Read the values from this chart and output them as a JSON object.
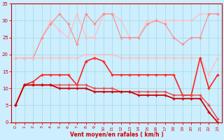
{
  "x": [
    0,
    1,
    2,
    3,
    4,
    5,
    6,
    7,
    8,
    9,
    10,
    11,
    12,
    13,
    14,
    15,
    16,
    17,
    18,
    19,
    20,
    21,
    22,
    23
  ],
  "line1": [
    19,
    19,
    19,
    25,
    30,
    27,
    25,
    32,
    25,
    25,
    32,
    32,
    30,
    25,
    25,
    30,
    30,
    30,
    30,
    30,
    30,
    32,
    32,
    32
  ],
  "line2": [
    19,
    19,
    19,
    25,
    29,
    32,
    29,
    23,
    32,
    29,
    32,
    32,
    25,
    25,
    25,
    29,
    30,
    29,
    25,
    23,
    25,
    25,
    32,
    32
  ],
  "line3": [
    19,
    19,
    19,
    19,
    19,
    19,
    19,
    19,
    20,
    20,
    20,
    20,
    19,
    19,
    19,
    19,
    19,
    19,
    19,
    19,
    19,
    19,
    14,
    19
  ],
  "line4": [
    5,
    11,
    12,
    14,
    14,
    14,
    14,
    11,
    18,
    19,
    18,
    14,
    14,
    14,
    14,
    14,
    14,
    14,
    14,
    8,
    8,
    19,
    10,
    14
  ],
  "line5": [
    5,
    11,
    11,
    11,
    11,
    11,
    11,
    11,
    11,
    10,
    10,
    10,
    9,
    9,
    9,
    9,
    9,
    9,
    8,
    8,
    8,
    8,
    5,
    1
  ],
  "line6": [
    5,
    11,
    11,
    11,
    11,
    10,
    10,
    10,
    10,
    9,
    9,
    9,
    9,
    9,
    8,
    8,
    8,
    8,
    7,
    7,
    7,
    7,
    3,
    0
  ],
  "bg_color": "#cceeff",
  "grid_color": "#aadddd",
  "axis_color": "#cc0000",
  "line1_color": "#ffbbbb",
  "line2_color": "#ff8888",
  "line3_color": "#ffbbbb",
  "line4_color": "#ff2222",
  "line5_color": "#ee4444",
  "line6_color": "#cc0000",
  "xlabel": "Vent moyen/en rafales ( km/h )",
  "ylim": [
    0,
    35
  ],
  "xlim": [
    -0.5,
    23.5
  ]
}
